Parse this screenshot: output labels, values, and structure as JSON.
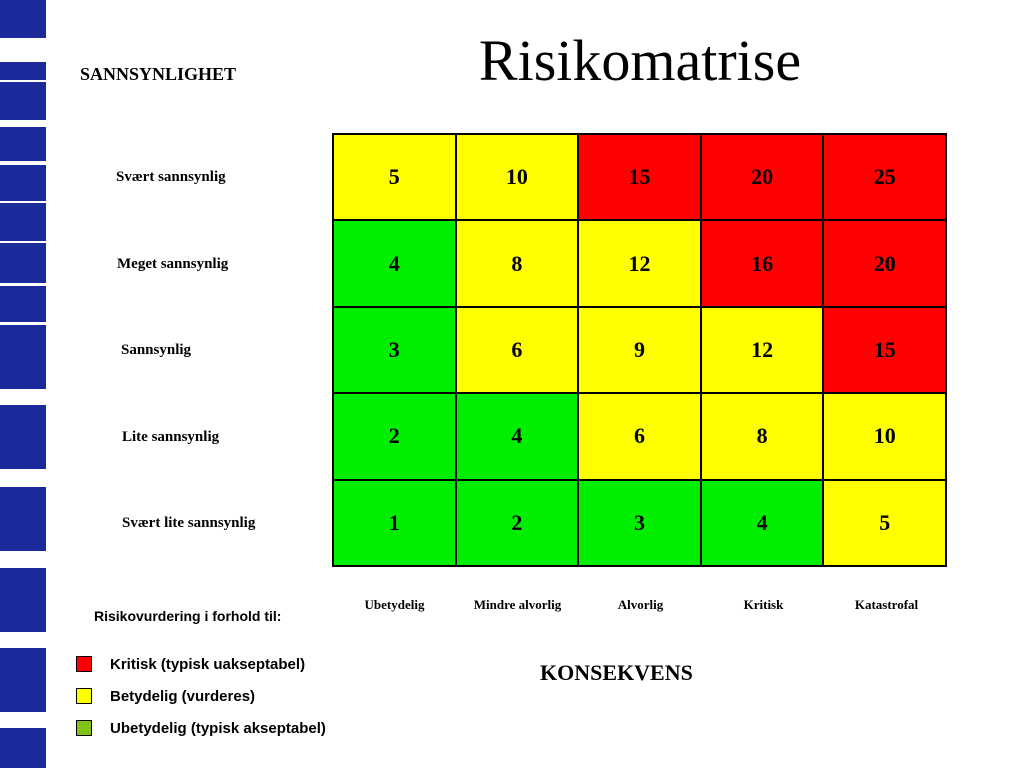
{
  "title": "Risikomatrise",
  "y_axis_title": "SANNSYNLIGHET",
  "x_axis_title": "KONSEKVENS",
  "row_labels": [
    "Svært sannsynlig",
    "Meget sannsynlig",
    "Sannsynlig",
    "Lite sannsynlig",
    "Svært lite sannsynlig"
  ],
  "column_labels": [
    "Ubetydelig",
    "Mindre alvorlig",
    "Alvorlig",
    "Kritisk",
    "Katastrofal"
  ],
  "matrix": [
    [
      {
        "value": "5",
        "level": "yellow"
      },
      {
        "value": "10",
        "level": "yellow"
      },
      {
        "value": "15",
        "level": "red"
      },
      {
        "value": "20",
        "level": "red"
      },
      {
        "value": "25",
        "level": "red"
      }
    ],
    [
      {
        "value": "4",
        "level": "green"
      },
      {
        "value": "8",
        "level": "yellow"
      },
      {
        "value": "12",
        "level": "yellow"
      },
      {
        "value": "16",
        "level": "red"
      },
      {
        "value": "20",
        "level": "red"
      }
    ],
    [
      {
        "value": "3",
        "level": "green"
      },
      {
        "value": "6",
        "level": "yellow"
      },
      {
        "value": "9",
        "level": "yellow"
      },
      {
        "value": "12",
        "level": "yellow"
      },
      {
        "value": "15",
        "level": "red"
      }
    ],
    [
      {
        "value": "2",
        "level": "green"
      },
      {
        "value": "4",
        "level": "green"
      },
      {
        "value": "6",
        "level": "yellow"
      },
      {
        "value": "8",
        "level": "yellow"
      },
      {
        "value": "10",
        "level": "yellow"
      }
    ],
    [
      {
        "value": "1",
        "level": "green"
      },
      {
        "value": "2",
        "level": "green"
      },
      {
        "value": "3",
        "level": "green"
      },
      {
        "value": "4",
        "level": "green"
      },
      {
        "value": "5",
        "level": "yellow"
      }
    ]
  ],
  "legend": {
    "title": "Risikovurdering i forhold til:",
    "items": [
      {
        "label": "Kritisk (typisk uakseptabel)",
        "color": "#ff0000"
      },
      {
        "label": "Betydelig (vurderes)",
        "color": "#ffff00"
      },
      {
        "label": "Ubetydelig (typisk akseptabel)",
        "color": "#7dc31a"
      }
    ]
  }
}
